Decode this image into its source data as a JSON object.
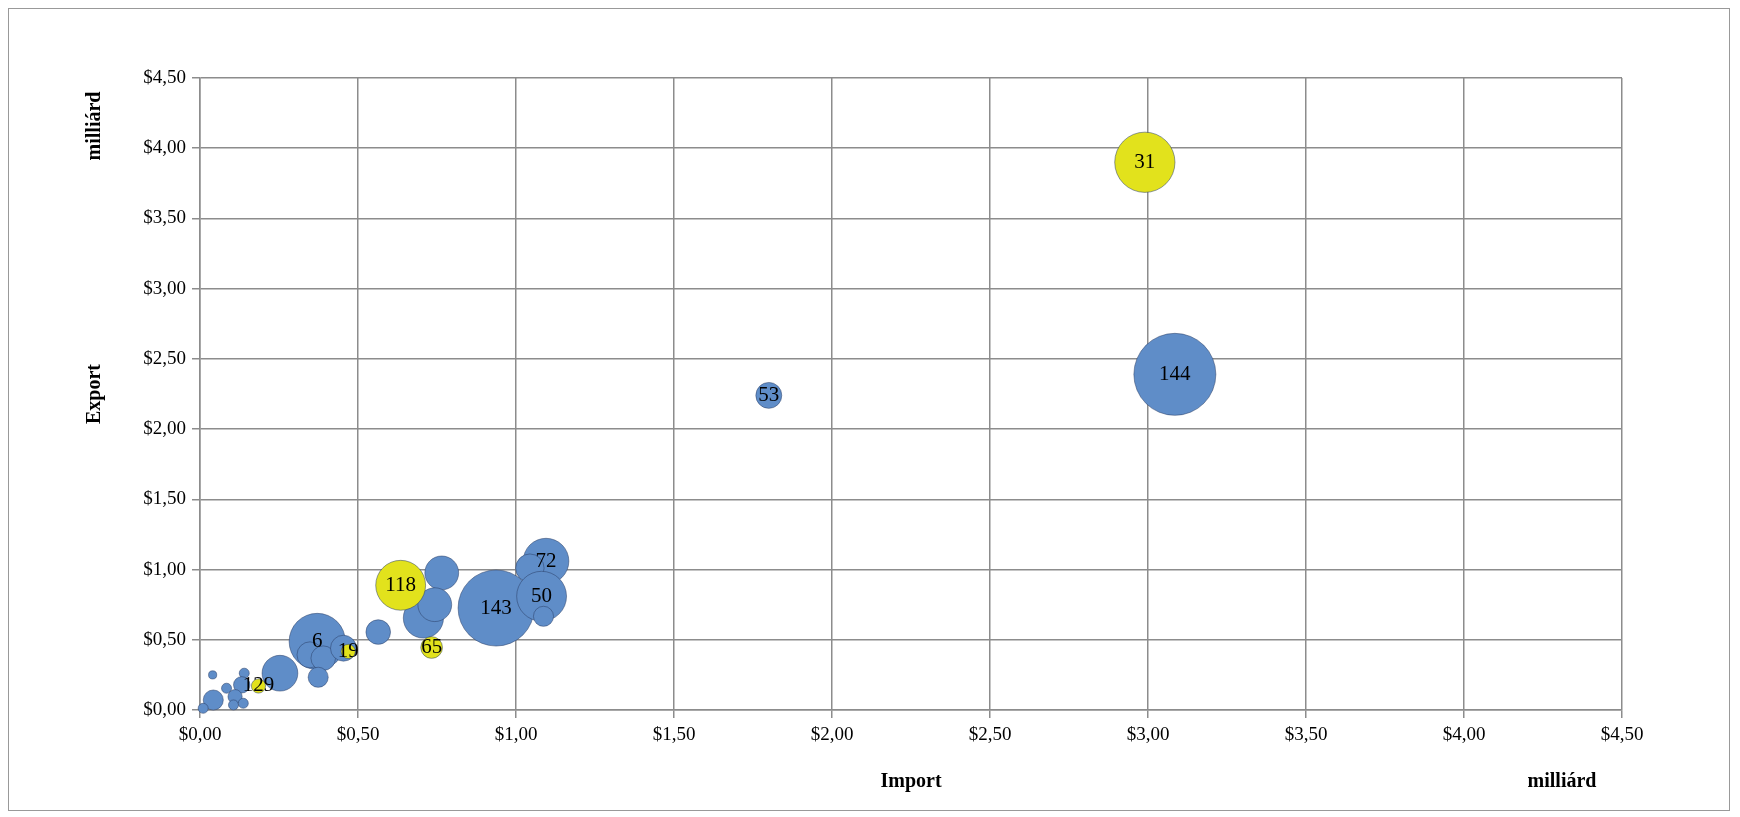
{
  "chart_data": {
    "type": "bubble",
    "xlabel": "Import",
    "ylabel": "Export",
    "xlim": [
      0,
      4.5
    ],
    "ylim": [
      0,
      4.5
    ],
    "xticks": [
      {
        "value": 0,
        "label": "$0,00"
      },
      {
        "value": 0.5,
        "label": "$0,50"
      },
      {
        "value": 1,
        "label": "$1,00"
      },
      {
        "value": 1.5,
        "label": "$1,50"
      },
      {
        "value": 2,
        "label": "$2,00"
      },
      {
        "value": 2.5,
        "label": "$2,50"
      },
      {
        "value": 3,
        "label": "$3,00"
      },
      {
        "value": 3.5,
        "label": "$3,50"
      },
      {
        "value": 4,
        "label": "$4,00"
      },
      {
        "value": 4.5,
        "label": "$4,50"
      }
    ],
    "yticks": [
      {
        "value": 0,
        "label": "$0,00"
      },
      {
        "value": 0.5,
        "label": "$0,50"
      },
      {
        "value": 1,
        "label": "$1,00"
      },
      {
        "value": 1.5,
        "label": "$1,50"
      },
      {
        "value": 2,
        "label": "$2,00"
      },
      {
        "value": 2.5,
        "label": "$2,50"
      },
      {
        "value": 3,
        "label": "$3,00"
      },
      {
        "value": 3.5,
        "label": "$3,50"
      },
      {
        "value": 4,
        "label": "$4,00"
      },
      {
        "value": 4.5,
        "label": "$4,50"
      }
    ],
    "grid": true,
    "legend": false,
    "series": [
      {
        "color": "#5f8dc8",
        "x": [
          3.085,
          1.8,
          0.937,
          1.095,
          1.044,
          1.081,
          1.087,
          0.765,
          0.707,
          0.743,
          0.564,
          0.371,
          0.348,
          0.39,
          0.454,
          0.374,
          0.253,
          0.04,
          0.14,
          0.132,
          0.084,
          0.042,
          0.111,
          0.106,
          0.01,
          0.137
        ],
        "values": [
          2.39,
          2.24,
          0.726,
          1.06,
          1.01,
          0.81,
          0.667,
          0.976,
          0.655,
          0.75,
          0.555,
          0.488,
          0.393,
          0.369,
          0.44,
          0.233,
          0.262,
          0.25,
          0.262,
          0.179,
          0.155,
          0.071,
          0.095,
          0.036,
          0.012,
          0.048
        ],
        "sizes": [
          1,
          0.1,
          0.86,
          0.31,
          0.12,
          0.37,
          0.06,
          0.17,
          0.24,
          0.17,
          0.09,
          0.47,
          0.1,
          0.09,
          0.1,
          0.06,
          0.19,
          0.01,
          0.015,
          0.04,
          0.015,
          0.06,
          0.03,
          0.015,
          0.015,
          0.015
        ]
      },
      {
        "color": "#e2e21c",
        "x": [
          2.99,
          0.635,
          0.733,
          0.469,
          0.185
        ],
        "values": [
          3.9,
          0.888,
          0.445,
          0.417,
          0.171
        ],
        "sizes": [
          0.54,
          0.37,
          0.07,
          0.03,
          0.03
        ]
      }
    ],
    "annotations": [
      "milliárd",
      "milliárd",
      {
        "text": "144",
        "x": 3.085,
        "y": 2.39
      },
      {
        "text": "53",
        "x": 1.8,
        "y": 2.24
      },
      {
        "text": "31",
        "x": 2.99,
        "y": 3.9
      },
      {
        "text": "143",
        "x": 0.937,
        "y": 0.726
      },
      {
        "text": "72",
        "x": 1.095,
        "y": 1.06
      },
      {
        "text": "50",
        "x": 1.081,
        "y": 0.81
      },
      {
        "text": "118",
        "x": 0.635,
        "y": 0.888
      },
      {
        "text": "6",
        "x": 0.371,
        "y": 0.488
      },
      {
        "text": "19",
        "x": 0.469,
        "y": 0.417
      },
      {
        "text": "65",
        "x": 0.733,
        "y": 0.445
      },
      {
        "text": "129",
        "x": 0.185,
        "y": 0.171
      }
    ]
  }
}
